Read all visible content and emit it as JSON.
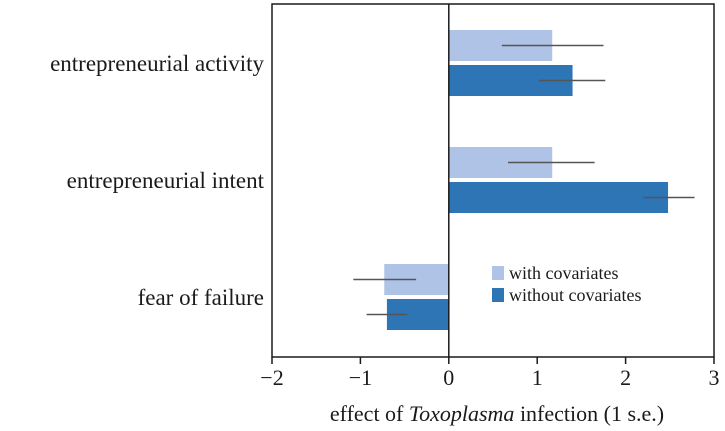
{
  "chart_data": {
    "type": "bar",
    "orientation": "horizontal",
    "categories": [
      "entrepreneurial activity",
      "entrepreneurial intent",
      "fear of failure"
    ],
    "series": [
      {
        "name": "with covariates",
        "color": "#aec3e6",
        "values": [
          1.17,
          1.17,
          -0.73
        ],
        "error_low": [
          0.6,
          0.67,
          -1.08
        ],
        "error_high": [
          1.75,
          1.65,
          -0.37
        ]
      },
      {
        "name": "without covariates",
        "color": "#2e75b6",
        "values": [
          1.4,
          2.48,
          -0.7
        ],
        "error_low": [
          1.02,
          2.2,
          -0.93
        ],
        "error_high": [
          1.77,
          2.78,
          -0.47
        ]
      }
    ],
    "xlim": [
      -2,
      3
    ],
    "xticks": [
      -2,
      -1,
      0,
      1,
      2,
      3
    ],
    "xlabel": {
      "prefix": "effect of ",
      "italic": "Toxoplasma",
      "suffix": " infection (1 s.e.)"
    },
    "ylabel": "",
    "grid": false,
    "legend_position": "lower-right"
  }
}
